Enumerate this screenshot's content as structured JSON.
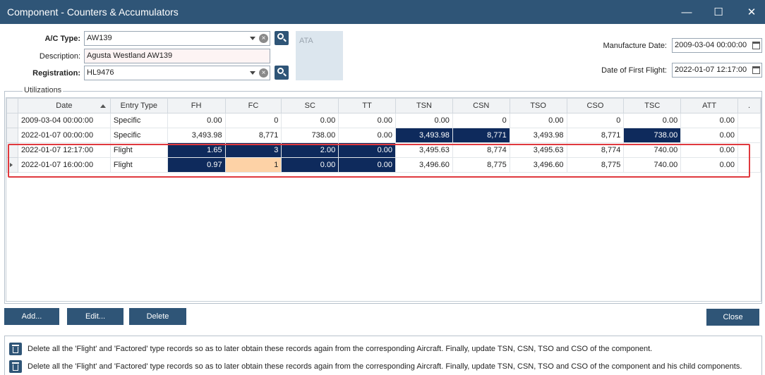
{
  "window": {
    "title": "Component - Counters & Accumulators",
    "minimize_glyph": "—",
    "maximize_glyph": "☐",
    "close_glyph": "✕"
  },
  "form": {
    "ac_type_label": "A/C Type:",
    "ac_type_value": "AW139",
    "description_label": "Description:",
    "description_value": "Agusta Westland AW139",
    "registration_label": "Registration:",
    "registration_value": "HL9476",
    "ata_label": "ATA",
    "manufacture_date_label": "Manufacture Date:",
    "manufacture_date_value": "2009-03-04 00:00:00",
    "first_flight_label": "Date of First Flight:",
    "first_flight_value": "2022-01-07 12:17:00"
  },
  "utilizations": {
    "group_title": "Utilizations",
    "columns": [
      "Date",
      "Entry Type",
      "FH",
      "FC",
      "SC",
      "TT",
      "TSN",
      "CSN",
      "TSO",
      "CSO",
      "TSC",
      "ATT",
      "."
    ],
    "rows": [
      [
        "2009-03-04 00:00:00",
        "Specific",
        "0.00",
        "0",
        "0.00",
        "0.00",
        "0.00",
        "0",
        "0.00",
        "0",
        "0.00",
        "0.00"
      ],
      [
        "2022-01-07 00:00:00",
        "Specific",
        "3,493.98",
        "8,771",
        "738.00",
        "0.00",
        "3,493.98",
        "8,771",
        "3,493.98",
        "8,771",
        "738.00",
        "0.00"
      ],
      [
        "2022-01-07 12:17:00",
        "Flight",
        "1.65",
        "3",
        "2.00",
        "0.00",
        "3,495.63",
        "8,774",
        "3,495.63",
        "8,774",
        "740.00",
        "0.00"
      ],
      [
        "2022-01-07 16:00:00",
        "Flight",
        "0.97",
        "1",
        "0.00",
        "0.00",
        "3,496.60",
        "8,775",
        "3,496.60",
        "8,775",
        "740.00",
        "0.00"
      ]
    ]
  },
  "buttons": {
    "add": "Add...",
    "edit": "Edit...",
    "delete": "Delete",
    "close": "Close"
  },
  "info": {
    "line1": "Delete all the 'Flight' and 'Factored' type records so as to later obtain these records again from the corresponding Aircraft. Finally, update TSN, CSN, TSO and CSO of the component.",
    "line2": "Delete all the 'Flight' and 'Factored' type records so as to later obtain these records again from the corresponding Aircraft. Finally, update TSN, CSN, TSO and CSO of the component and his child components."
  },
  "colors": {
    "titlebar": "#2f5577",
    "selected_cell": "#0e2a5c",
    "current_cell": "#fdd2a6",
    "highlight_border": "#e0393e"
  }
}
